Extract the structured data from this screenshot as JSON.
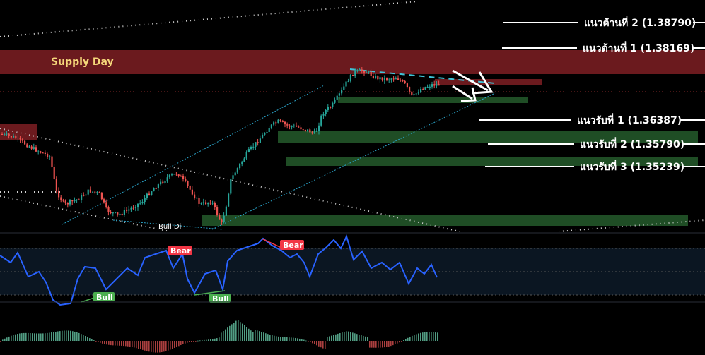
{
  "chart_data": {
    "type": "candlestick",
    "zones": {
      "supply_label": "Supply Day"
    },
    "levels": [
      {
        "label": "แนวต้านที่ 2 (1.38790)",
        "kind": "resistance",
        "value": 1.3879
      },
      {
        "label": "แนวต้านที่ 1 (1.38169)",
        "kind": "resistance",
        "value": 1.38169
      },
      {
        "label": "แนวรับที่ 1 (1.36387)",
        "kind": "support",
        "value": 1.36387
      },
      {
        "label": "แนวรับที่ 2 (1.35790)",
        "kind": "support",
        "value": 1.3579
      },
      {
        "label": "แนวรับที่ 3 (1.35239)",
        "kind": "support",
        "value": 1.35239
      }
    ],
    "annotations": {
      "bull_div": "Bull Di",
      "bear_1": "Bear",
      "bear_2": "Bear",
      "bull_1": "Bull",
      "bull_2": "Bull"
    },
    "colors": {
      "supply": "#6b1a1e",
      "demand": "#1f4d25",
      "bull_candle": "#26a69a",
      "bear_candle": "#ef5350",
      "rsi_line": "#2962ff",
      "bear_tag": "#f23645",
      "bull_tag": "#4caf50"
    }
  }
}
